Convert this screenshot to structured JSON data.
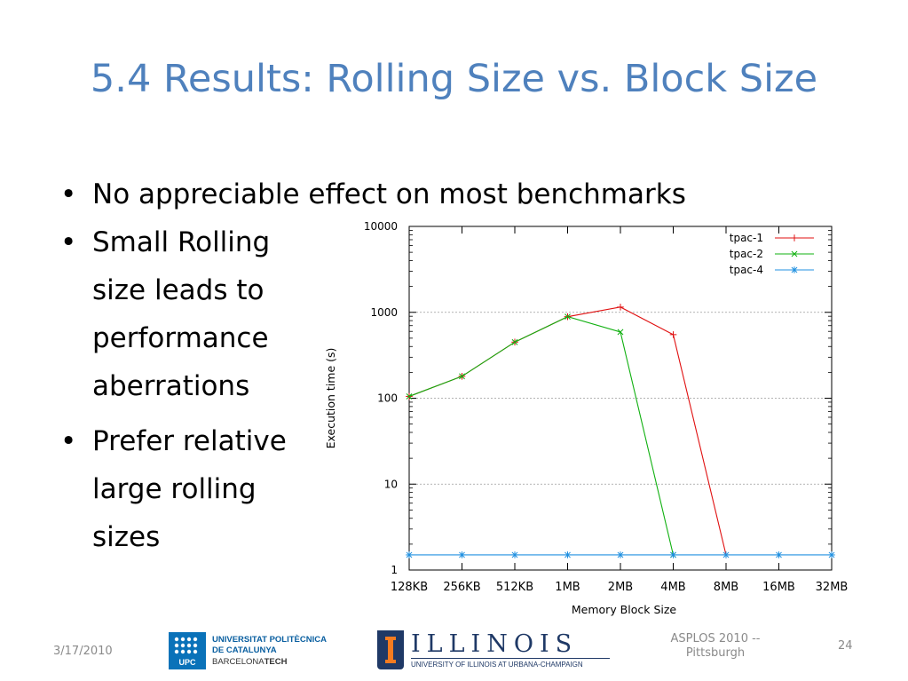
{
  "slide": {
    "title": "5.4 Results: Rolling Size vs. Block Size",
    "bullet_char": "•",
    "bullets": [
      "No appreciable effect on most benchmarks",
      "Small Rolling\nsize leads to\nperformance\naberrations",
      "Prefer relative\nlarge rolling\nsizes"
    ]
  },
  "footer": {
    "date": "3/17/2010",
    "conference": "ASPLOS 2010 --\nPittsburgh",
    "page": "24",
    "upc_logo": {
      "lines": [
        "UNIVERSITAT POLITÈCNICA",
        "DE CATALUNYA",
        "BARCELONA",
        "TECH"
      ],
      "badge": "UPC"
    },
    "illinois_logo": {
      "word": "ILLINOIS",
      "sub": "UNIVERSITY OF ILLINOIS AT URBANA-CHAMPAIGN"
    }
  },
  "colors": {
    "title": "#4f81bd",
    "tpac1": "#e01010",
    "tpac2": "#10b010",
    "tpac4": "#2090e0"
  },
  "chart_data": {
    "type": "line",
    "title": "",
    "xlabel": "Memory Block Size",
    "ylabel": "Execution time (s)",
    "y_scale": "log",
    "ylim": [
      1,
      10000
    ],
    "y_ticks": [
      "1",
      "10",
      "100",
      "1000",
      "10000"
    ],
    "categories": [
      "128KB",
      "256KB",
      "512KB",
      "1MB",
      "2MB",
      "4MB",
      "8MB",
      "16MB",
      "32MB"
    ],
    "grid": true,
    "legend_position": "top-right",
    "series": [
      {
        "name": "tpac-1",
        "marker": "+",
        "values": [
          105,
          180,
          450,
          890,
          1150,
          550,
          1.5,
          null,
          null
        ]
      },
      {
        "name": "tpac-2",
        "marker": "x",
        "values": [
          105,
          180,
          450,
          890,
          590,
          1.5,
          null,
          null,
          null
        ]
      },
      {
        "name": "tpac-4",
        "marker": "*",
        "values": [
          1.5,
          1.5,
          1.5,
          1.5,
          1.5,
          1.5,
          1.5,
          1.5,
          1.5
        ]
      }
    ]
  }
}
